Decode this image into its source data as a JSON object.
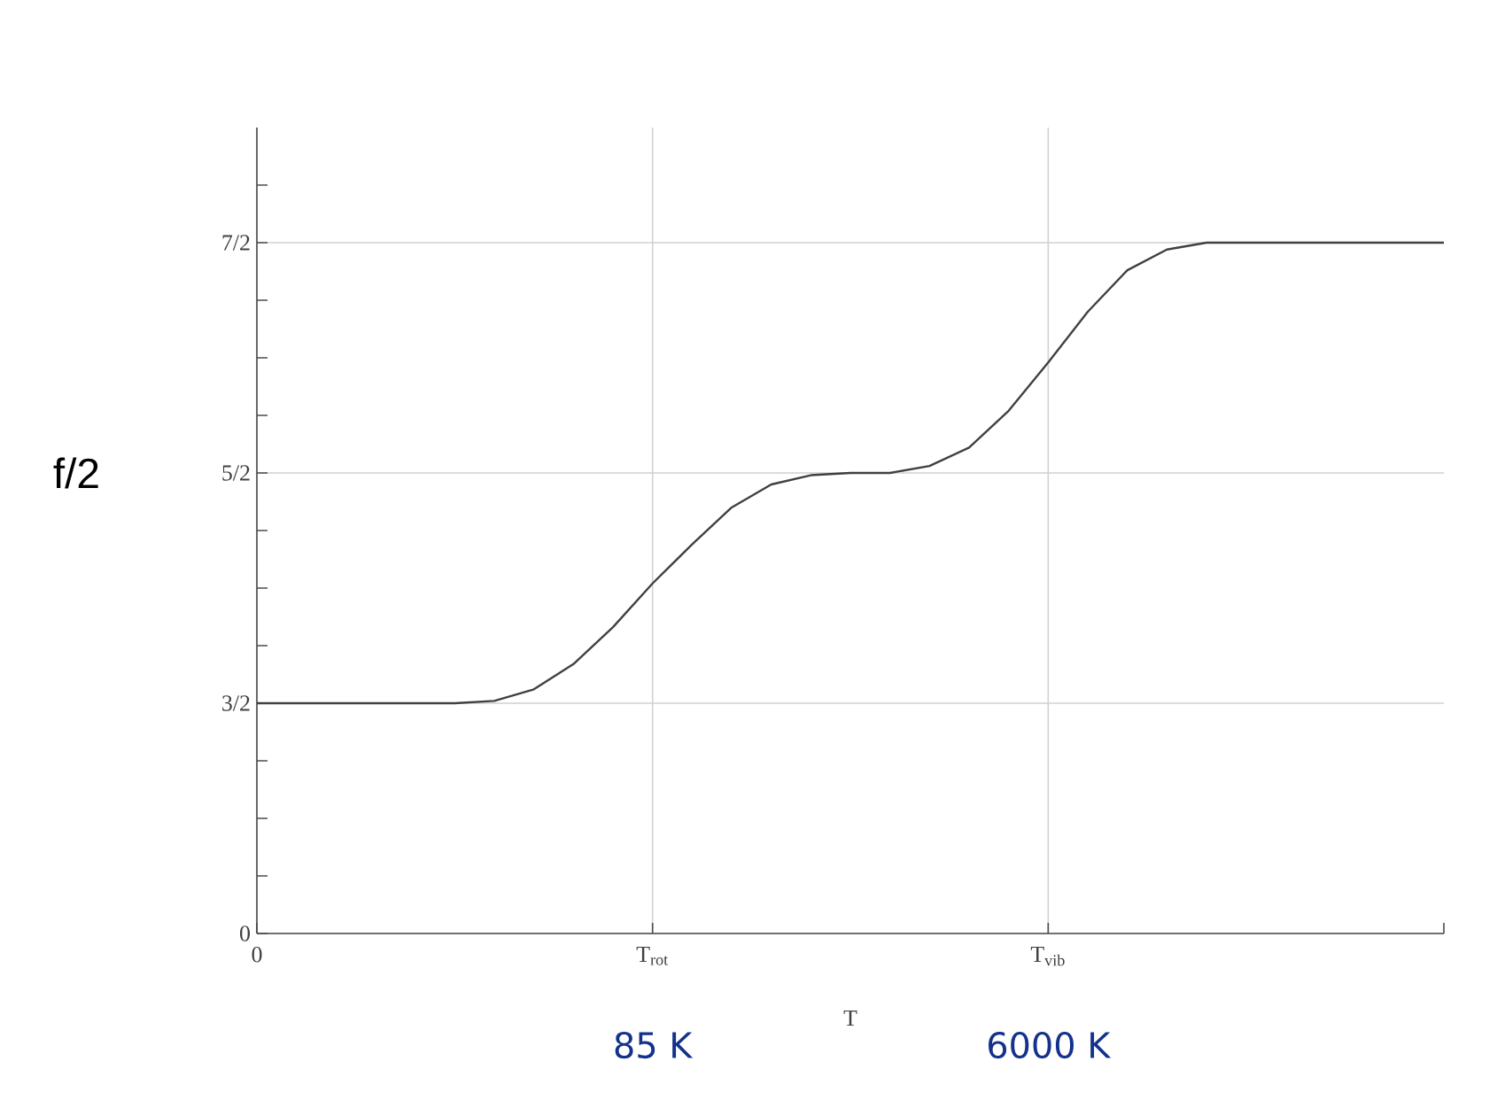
{
  "chart_data": {
    "type": "line",
    "xlabel": "T",
    "ylabel": "f/2",
    "categories": [
      "0",
      null,
      null,
      null,
      null,
      null,
      null,
      null,
      null,
      null,
      "T$_{rot}$",
      null,
      null,
      null,
      null,
      null,
      null,
      null,
      null,
      null,
      "T$_{vib}$",
      null,
      null,
      null,
      null,
      null,
      null,
      null,
      null,
      null,
      null
    ],
    "series": [
      {
        "color": "#404040",
        "values": [
          1.5,
          1.5,
          1.5,
          1.5,
          1.5,
          1.5,
          1.51,
          1.56,
          1.67,
          1.83,
          2.02,
          2.19,
          2.35,
          2.45,
          2.49,
          2.5,
          2.5,
          2.53,
          2.61,
          2.77,
          2.98,
          3.2,
          3.38,
          3.47,
          3.5,
          3.5,
          3.5,
          3.5,
          3.5,
          3.5,
          3.5
        ]
      }
    ],
    "ylim": [
      0.5,
      4
    ],
    "yticks": [
      {
        "value": 0.5,
        "label": "0"
      },
      {
        "value": 0.75,
        "label": null
      },
      {
        "value": 1,
        "label": null
      },
      {
        "value": 1.25,
        "label": null
      },
      {
        "value": 1.5,
        "label": "3/2"
      },
      {
        "value": 1.75,
        "label": null
      },
      {
        "value": 2,
        "label": null
      },
      {
        "value": 2.25,
        "label": null
      },
      {
        "value": 2.5,
        "label": "5/2"
      },
      {
        "value": 2.75,
        "label": null
      },
      {
        "value": 3,
        "label": null
      },
      {
        "value": 3.25,
        "label": null
      },
      {
        "value": 3.5,
        "label": "7/2"
      },
      {
        "value": 3.75,
        "label": null
      }
    ],
    "grid": true,
    "line_style": "solid",
    "marker": "none",
    "annotations": [
      "85 K",
      "6000 K"
    ]
  }
}
